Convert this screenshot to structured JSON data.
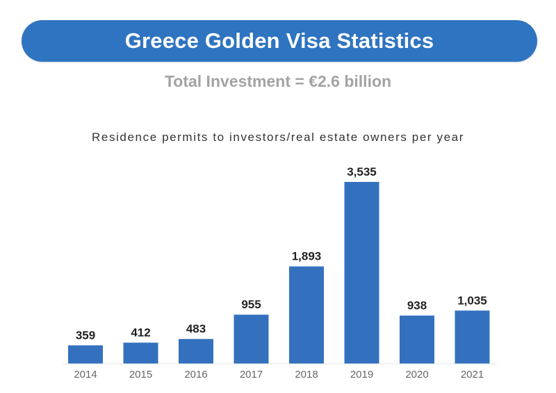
{
  "header": {
    "title": "Greece Golden Visa Statistics",
    "subtitle": "Total Investment = €2.6 billion"
  },
  "colors": {
    "accent": "#2f74c0",
    "bar": "#3371bf",
    "subtitle_text": "#a3a3a3"
  },
  "chart_data": {
    "type": "bar",
    "title": "Residence permits to investors/real estate owners per year",
    "categories": [
      "2014",
      "2015",
      "2016",
      "2017",
      "2018",
      "2019",
      "2020",
      "2021"
    ],
    "values": [
      359,
      412,
      483,
      955,
      1893,
      3535,
      938,
      1035
    ],
    "value_labels": [
      "359",
      "412",
      "483",
      "955",
      "1,893",
      "3,535",
      "938",
      "1,035"
    ],
    "xlabel": "",
    "ylabel": "",
    "ylim": [
      0,
      3535
    ],
    "grid": false,
    "legend": "none"
  }
}
